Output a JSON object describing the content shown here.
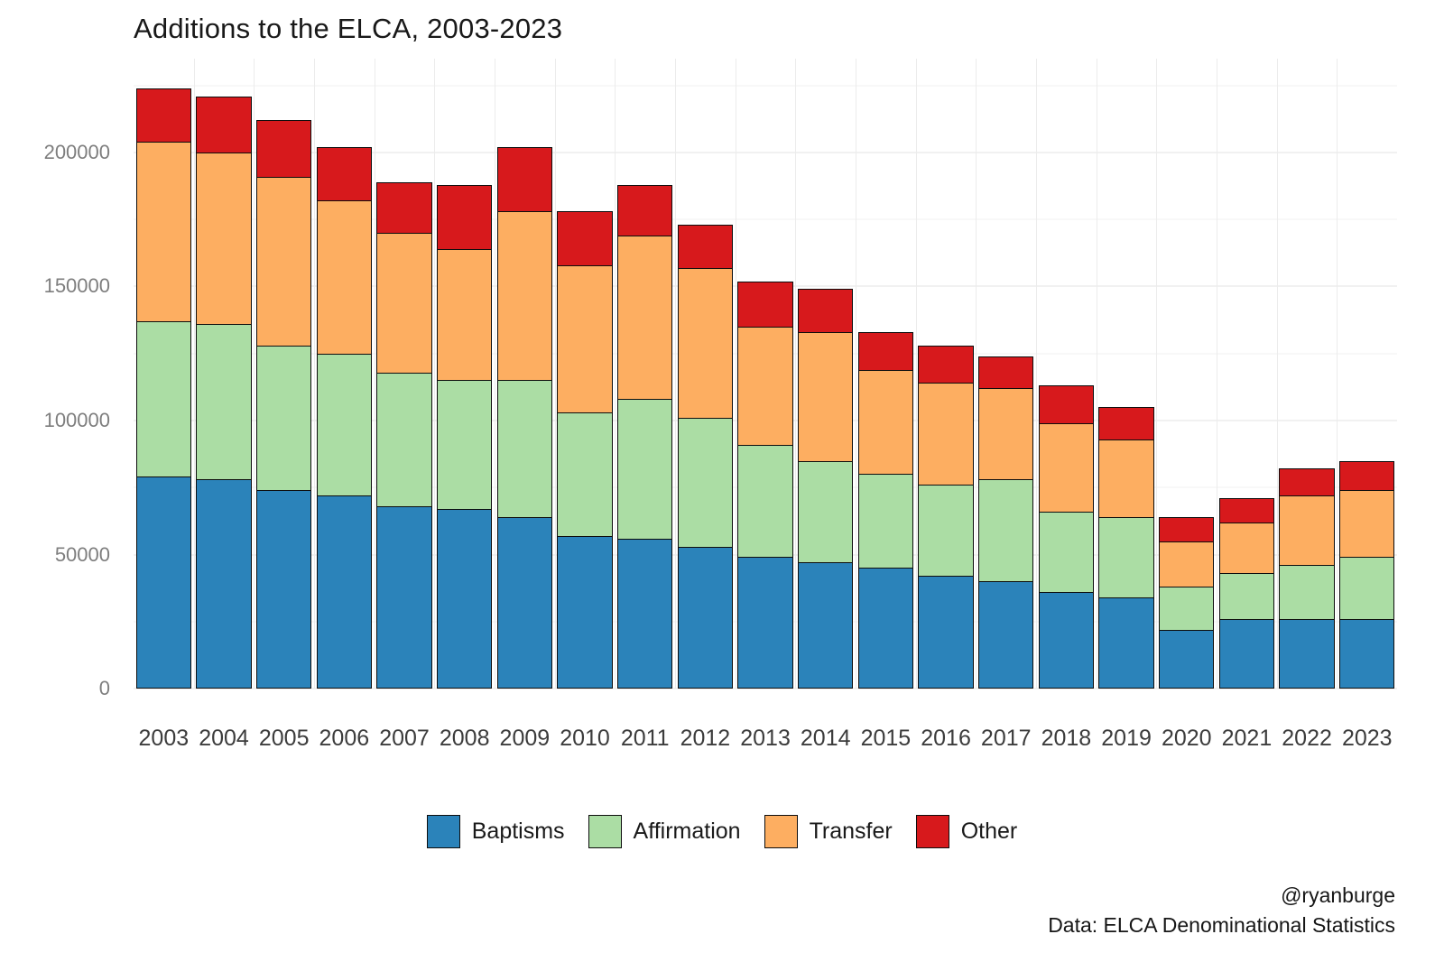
{
  "title": "Additions to the ELCA, 2003-2023",
  "caption": {
    "handle": "@ryanburge",
    "source": "Data: ELCA Denominational Statistics"
  },
  "chart_data": {
    "type": "bar",
    "stacked": true,
    "title": "Additions to the ELCA, 2003-2023",
    "xlabel": "",
    "ylabel": "",
    "categories": [
      "2003",
      "2004",
      "2005",
      "2006",
      "2007",
      "2008",
      "2009",
      "2010",
      "2011",
      "2012",
      "2013",
      "2014",
      "2015",
      "2016",
      "2017",
      "2018",
      "2019",
      "2020",
      "2021",
      "2022",
      "2023"
    ],
    "series": [
      {
        "name": "Baptisms",
        "color": "#2b83ba",
        "values": [
          79000,
          78000,
          74000,
          72000,
          68000,
          67000,
          64000,
          57000,
          56000,
          53000,
          49000,
          47000,
          45000,
          42000,
          40000,
          36000,
          34000,
          22000,
          26000,
          26000,
          26000
        ]
      },
      {
        "name": "Affirmation",
        "color": "#abdda4",
        "values": [
          58000,
          58000,
          54000,
          53000,
          50000,
          48000,
          51000,
          46000,
          52000,
          48000,
          42000,
          38000,
          35000,
          34000,
          38000,
          30000,
          30000,
          16000,
          17000,
          20000,
          23000
        ]
      },
      {
        "name": "Transfer",
        "color": "#fdae61",
        "values": [
          67000,
          64000,
          63000,
          57000,
          52000,
          49000,
          63000,
          55000,
          61000,
          56000,
          44000,
          48000,
          39000,
          38000,
          34000,
          33000,
          29000,
          17000,
          19000,
          26000,
          25000
        ]
      },
      {
        "name": "Other",
        "color": "#d7191c",
        "values": [
          20000,
          21000,
          21000,
          20000,
          19000,
          24000,
          24000,
          20000,
          19000,
          16000,
          17000,
          16000,
          14000,
          14000,
          12000,
          14000,
          12000,
          9000,
          9000,
          10000,
          11000
        ]
      }
    ],
    "ylim": [
      0,
      235000
    ],
    "yticks": [
      0,
      50000,
      100000,
      150000,
      200000
    ],
    "yticks_minor": [
      25000,
      75000,
      125000,
      175000,
      225000
    ],
    "legend_position": "bottom",
    "grid": true
  }
}
